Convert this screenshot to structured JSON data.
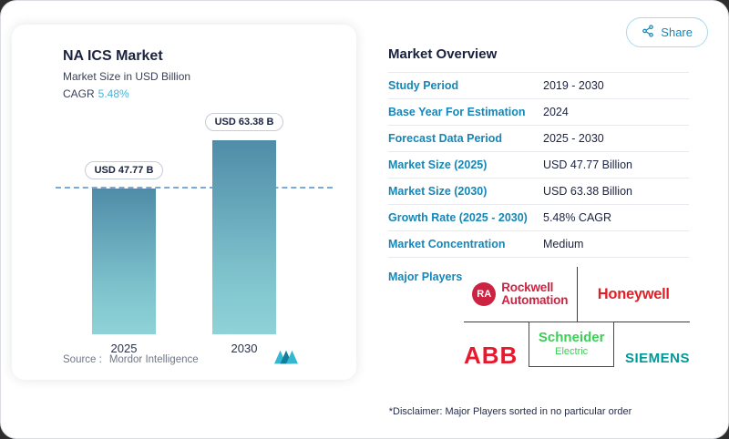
{
  "share": {
    "label": "Share"
  },
  "chart_card": {
    "title": "NA ICS Market",
    "subtitle": "Market Size in USD Billion",
    "cagr_label": "CAGR",
    "cagr_value": "5.48%",
    "source_prefix": "Source :",
    "source_name": "Mordor Intelligence"
  },
  "chart_data": {
    "type": "bar",
    "categories": [
      "2025",
      "2030"
    ],
    "values": [
      47.77,
      63.38
    ],
    "value_labels": [
      "USD 47.77 B",
      "USD 63.38 B"
    ],
    "title": "NA ICS Market",
    "ylabel": "Market Size in USD Billion",
    "ylim": [
      0,
      70
    ],
    "reference_line": 47.77,
    "legend": "none",
    "grid": false
  },
  "overview": {
    "heading": "Market Overview",
    "rows": [
      {
        "label": "Study Period",
        "value": "2019 - 2030"
      },
      {
        "label": "Base Year For Estimation",
        "value": "2024"
      },
      {
        "label": "Forecast Data Period",
        "value": "2025 - 2030"
      },
      {
        "label": "Market Size (2025)",
        "value": "USD 47.77 Billion"
      },
      {
        "label": "Market Size (2030)",
        "value": "USD 63.38 Billion"
      },
      {
        "label": "Growth Rate (2025 - 2030)",
        "value": "5.48% CAGR"
      },
      {
        "label": "Market Concentration",
        "value": "Medium"
      }
    ],
    "major_players_label": "Major Players",
    "disclaimer": "*Disclaimer: Major Players sorted in no particular order"
  },
  "players_logos": {
    "rockwell_badge": "RA",
    "rockwell_line1": "Rockwell",
    "rockwell_line2": "Automation",
    "honeywell": "Honeywell",
    "abb": "ABB",
    "schneider_line1": "Schneider",
    "schneider_line2": "Electric",
    "siemens": "SIEMENS"
  },
  "colors": {
    "accent": "#1487b8",
    "cagr": "#4fb0d5",
    "bar_top": "#4f8ca8",
    "bar_bottom": "#8fd3d8",
    "reference_line": "#7aa9dc",
    "rockwell_red": "#cd2342",
    "honeywell_red": "#e11f26",
    "abb_red": "#e8192c",
    "schneider_green": "#3dcd58",
    "siemens_teal": "#009999"
  }
}
